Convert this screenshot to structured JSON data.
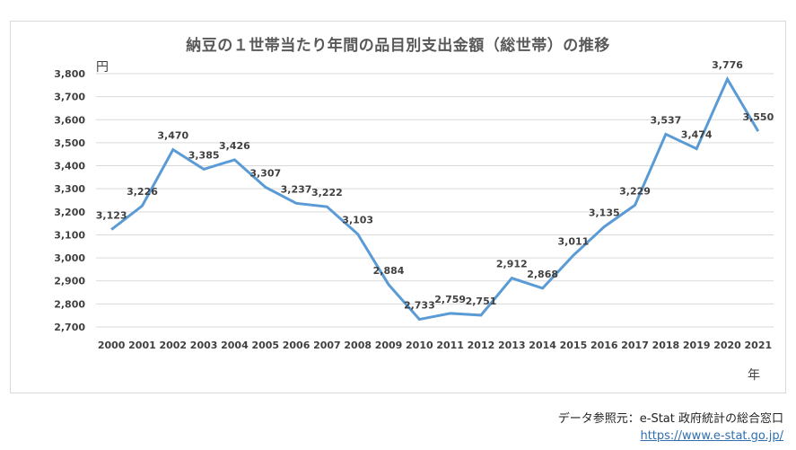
{
  "chart_data": {
    "type": "line",
    "title": "納豆の１世帯当たり年間の品目別支出金額（総世帯）の推移",
    "xlabel": "年",
    "ylabel": "円",
    "ylim": [
      2700,
      3800
    ],
    "y_ticks": [
      2700,
      2800,
      2900,
      3000,
      3100,
      3200,
      3300,
      3400,
      3500,
      3600,
      3700,
      3800
    ],
    "y_tick_labels": [
      "2,700",
      "2,800",
      "2,900",
      "3,000",
      "3,100",
      "3,200",
      "3,300",
      "3,400",
      "3,500",
      "3,600",
      "3,700",
      "3,800"
    ],
    "grid": true,
    "legend": "none",
    "categories": [
      "2000",
      "2001",
      "2002",
      "2003",
      "2004",
      "2005",
      "2006",
      "2007",
      "2008",
      "2009",
      "2010",
      "2011",
      "2012",
      "2013",
      "2014",
      "2015",
      "2016",
      "2017",
      "2018",
      "2019",
      "2020",
      "2021"
    ],
    "series": [
      {
        "name": "納豆",
        "color": "#5b9bd5",
        "values": [
          3123,
          3226,
          3470,
          3385,
          3426,
          3307,
          3237,
          3222,
          3103,
          2884,
          2733,
          2759,
          2751,
          2912,
          2868,
          3011,
          3135,
          3229,
          3537,
          3474,
          3776,
          3550
        ],
        "labels": [
          "3,123",
          "3,226",
          "3,470",
          "3,385",
          "3,426",
          "3,307",
          "3,237",
          "3,222",
          "3,103",
          "2,884",
          "2,733",
          "2,759",
          "2,751",
          "2,912",
          "2,868",
          "3,011",
          "3,135",
          "3,229",
          "3,537",
          "3,474",
          "3,776",
          "3,550"
        ]
      }
    ]
  },
  "footer": {
    "source_text": "データ参照元：e-Stat 政府統計の総合窓口",
    "source_url": "https://www.e-stat.go.jp/"
  }
}
